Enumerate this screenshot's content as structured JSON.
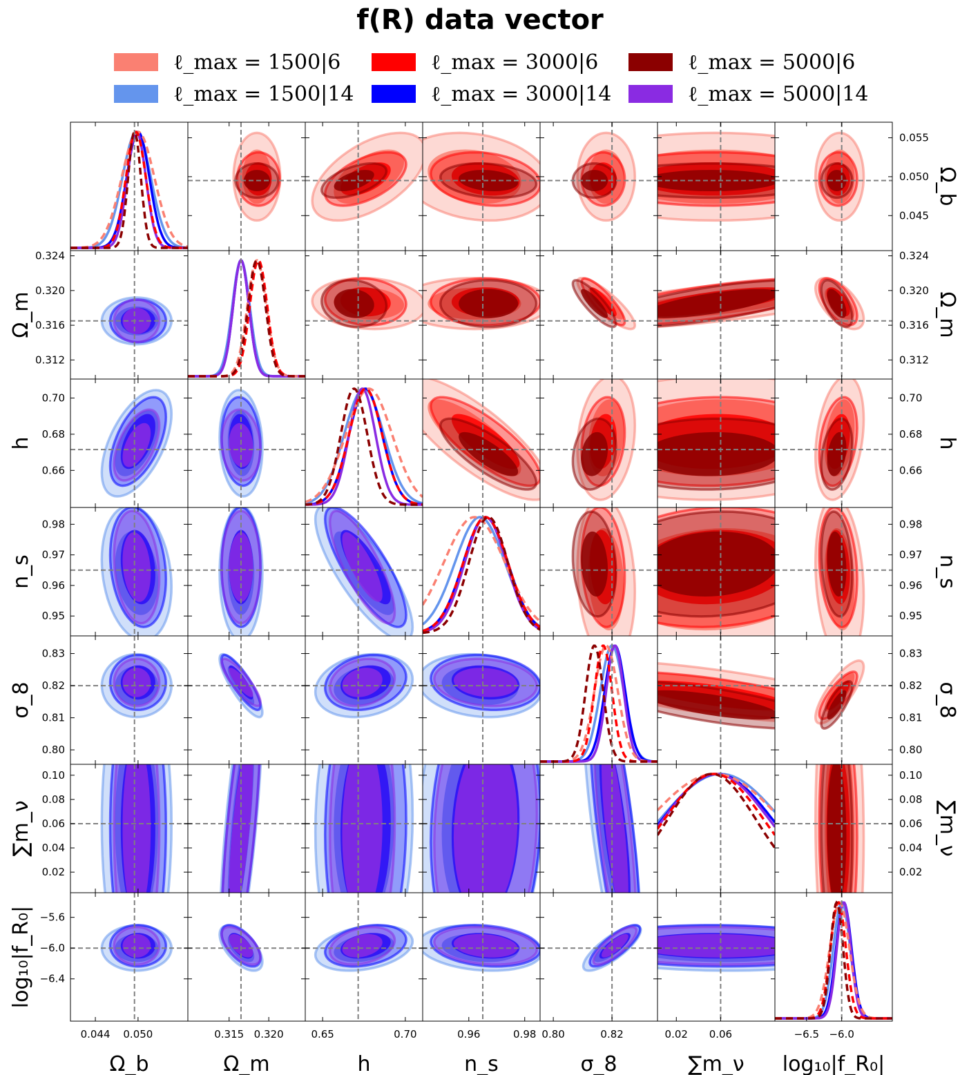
{
  "chart_data": {
    "type": "corner",
    "title": "f(R) data vector",
    "parameters": [
      {
        "name": "Omega_b",
        "label": "Ω_b",
        "fiducial": 0.0495,
        "range": [
          0.0405,
          0.057
        ],
        "ticks": [
          "0.044",
          "0.050"
        ],
        "tick_values": [
          0.044,
          0.05
        ],
        "right_ticks": [
          "0.045",
          "0.050",
          "0.055"
        ],
        "right_tick_values": [
          0.045,
          0.05,
          0.055
        ]
      },
      {
        "name": "Omega_m",
        "label": "Ω_m",
        "fiducial": 0.3165,
        "range": [
          0.3098,
          0.3246
        ],
        "ticks": [
          "0.315",
          "0.320"
        ],
        "tick_values": [
          0.315,
          0.32
        ],
        "left_ticks": [
          "0.312",
          "0.316",
          "0.320",
          "0.324"
        ],
        "left_tick_values": [
          0.312,
          0.316,
          0.32,
          0.324
        ]
      },
      {
        "name": "h",
        "label": "h",
        "fiducial": 0.6715,
        "range": [
          0.6395,
          0.7105
        ],
        "ticks": [
          "0.65",
          "0.70"
        ],
        "tick_values": [
          0.65,
          0.7
        ],
        "left_ticks": [
          "0.66",
          "0.68",
          "0.70"
        ],
        "left_tick_values": [
          0.66,
          0.68,
          0.7
        ]
      },
      {
        "name": "n_s",
        "label": "n_s",
        "fiducial": 0.965,
        "range": [
          0.9435,
          0.9855
        ],
        "ticks": [
          "0.96",
          "0.98"
        ],
        "tick_values": [
          0.96,
          0.98
        ],
        "left_ticks": [
          "0.95",
          "0.96",
          "0.97",
          "0.98"
        ],
        "left_tick_values": [
          0.95,
          0.96,
          0.97,
          0.98
        ]
      },
      {
        "name": "sigma_8",
        "label": "σ_8",
        "fiducial": 0.82,
        "range": [
          0.7955,
          0.8355
        ],
        "ticks": [
          "0.80",
          "0.82"
        ],
        "tick_values": [
          0.8,
          0.82
        ],
        "left_ticks": [
          "0.80",
          "0.81",
          "0.82",
          "0.83"
        ],
        "left_tick_values": [
          0.8,
          0.81,
          0.82,
          0.83
        ]
      },
      {
        "name": "sum_m_nu",
        "label": "∑m_ν",
        "fiducial": 0.06,
        "range": [
          0.003,
          0.109
        ],
        "ticks": [
          "0.02",
          "0.06"
        ],
        "tick_values": [
          0.02,
          0.06
        ],
        "left_ticks": [
          "0.02",
          "0.04",
          "0.06",
          "0.08",
          "0.10"
        ],
        "left_tick_values": [
          0.02,
          0.04,
          0.06,
          0.08,
          0.1
        ]
      },
      {
        "name": "log10_fR0",
        "label": "log₁₀|f_R₀|",
        "fiducial": -6.0,
        "range": [
          -6.95,
          -5.28
        ],
        "ticks": [
          "−6.5",
          "−6.0"
        ],
        "tick_values": [
          -6.5,
          -6.0
        ],
        "left_ticks": [
          "−6.4",
          "−6.0",
          "−5.6"
        ],
        "left_tick_values": [
          -6.4,
          -6.0,
          -5.6
        ]
      }
    ],
    "legend": [
      {
        "label": "ℓ_max = 1500|6",
        "color": "#fa8072"
      },
      {
        "label": "ℓ_max = 3000|6",
        "color": "#ff0000"
      },
      {
        "label": "ℓ_max = 5000|6",
        "color": "#8b0000"
      },
      {
        "label": "ℓ_max = 1500|14",
        "color": "#6495ed"
      },
      {
        "label": "ℓ_max = 3000|14",
        "color": "#0000ff"
      },
      {
        "label": "ℓ_max = 5000|14",
        "color": "#8a2be2"
      }
    ],
    "series": [
      {
        "name": "1500|6",
        "color": "#fa8072",
        "fill": "#fa8072",
        "style": "dashed",
        "triangle": "upper",
        "mean": [
          0.05,
          0.3185,
          0.678,
          0.962,
          0.818,
          0.055,
          -6.03
        ],
        "sigma": [
          0.0023,
          0.0012,
          0.014,
          0.011,
          0.004,
          0.06,
          0.14
        ],
        "corr": 0.0
      },
      {
        "name": "3000|6",
        "color": "#ff0000",
        "fill": "#ff0000",
        "style": "dashed",
        "triangle": "upper",
        "mean": [
          0.0497,
          0.3187,
          0.676,
          0.966,
          0.817,
          0.054,
          -6.05
        ],
        "sigma": [
          0.0014,
          0.0011,
          0.01,
          0.008,
          0.003,
          0.045,
          0.11
        ],
        "corr": 0.0
      },
      {
        "name": "5000|6",
        "color": "#8b0000",
        "fill": "#8b0000",
        "style": "dashed",
        "triangle": "upper",
        "mean": [
          0.0495,
          0.3185,
          0.669,
          0.967,
          0.814,
          0.052,
          -6.07
        ],
        "sigma": [
          0.0009,
          0.0011,
          0.008,
          0.007,
          0.003,
          0.04,
          0.09
        ],
        "corr": 0.0
      },
      {
        "name": "1500|14",
        "color": "#6495ed",
        "fill": "#6495ed",
        "style": "solid",
        "triangle": "lower",
        "mean": [
          0.0498,
          0.3165,
          0.675,
          0.964,
          0.82,
          0.06,
          -6.0
        ],
        "sigma": [
          0.002,
          0.0011,
          0.012,
          0.009,
          0.004,
          0.055,
          0.12
        ],
        "corr": 0.0
      },
      {
        "name": "3000|14",
        "color": "#0000ff",
        "fill": "#0000ff",
        "style": "solid",
        "triangle": "lower",
        "mean": [
          0.05,
          0.3165,
          0.676,
          0.966,
          0.821,
          0.057,
          -5.97
        ],
        "sigma": [
          0.0016,
          0.001,
          0.01,
          0.008,
          0.0035,
          0.05,
          0.11
        ],
        "corr": 0.0
      },
      {
        "name": "5000|14",
        "color": "#8a2be2",
        "fill": "#8a2be2",
        "style": "solid",
        "triangle": "lower",
        "mean": [
          0.0498,
          0.3165,
          0.674,
          0.966,
          0.821,
          0.056,
          -5.97
        ],
        "sigma": [
          0.0013,
          0.001,
          0.008,
          0.0075,
          0.003,
          0.048,
          0.1
        ],
        "corr": 0.0
      }
    ],
    "correlations": {
      "0-1": 0.0,
      "0-2": 0.55,
      "0-3": -0.2,
      "0-4": 0.0,
      "0-5": 0.0,
      "0-6": 0.0,
      "1-2": -0.1,
      "1-3": 0.0,
      "1-4": -0.85,
      "1-5": 0.7,
      "1-6": -0.6,
      "2-3": -0.8,
      "2-4": 0.2,
      "2-5": 0.05,
      "2-6": 0.3,
      "3-4": -0.15,
      "3-5": 0.1,
      "3-6": -0.2,
      "4-5": -0.7,
      "4-6": 0.8,
      "5-6": -0.05
    }
  }
}
